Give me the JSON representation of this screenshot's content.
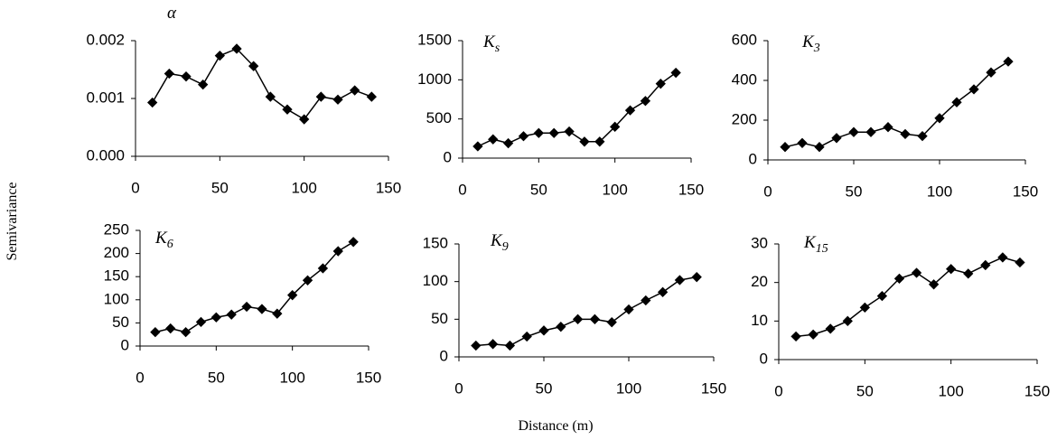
{
  "ylabel": "Semivariance",
  "xlabel": "Distance (m)",
  "chart_data": [
    {
      "type": "line",
      "title": "α",
      "x": [
        10,
        20,
        30,
        40,
        50,
        60,
        70,
        80,
        90,
        100,
        110,
        120,
        130,
        140
      ],
      "values": [
        0.00093,
        0.00143,
        0.00138,
        0.00124,
        0.00174,
        0.00186,
        0.00156,
        0.00103,
        0.00081,
        0.00064,
        0.00103,
        0.00098,
        0.00114,
        0.00103
      ],
      "color": "#000000",
      "xlim": [
        0,
        150
      ],
      "xticks": [
        0,
        50,
        100,
        150
      ],
      "ylim": [
        0,
        0.002
      ],
      "yticks": [
        {
          "value": 0,
          "label": "0.000"
        },
        {
          "value": 0.001,
          "label": "0.001"
        },
        {
          "value": 0.002,
          "label": "0.002"
        }
      ]
    },
    {
      "type": "line",
      "title": "K",
      "subscript": "s",
      "x": [
        10,
        20,
        30,
        40,
        50,
        60,
        70,
        80,
        90,
        100,
        110,
        120,
        130,
        140
      ],
      "values": [
        150,
        240,
        190,
        280,
        320,
        320,
        340,
        210,
        210,
        400,
        610,
        730,
        950,
        1090
      ],
      "color": "#000000",
      "xlim": [
        0,
        150
      ],
      "xticks": [
        0,
        50,
        100,
        150
      ],
      "ylim": [
        0,
        1500
      ],
      "yticks": [
        0,
        500,
        1000,
        1500
      ]
    },
    {
      "type": "line",
      "title": "K",
      "subscript": "3",
      "x": [
        10,
        20,
        30,
        40,
        50,
        60,
        70,
        80,
        90,
        100,
        110,
        120,
        130,
        140
      ],
      "values": [
        65,
        85,
        65,
        110,
        140,
        140,
        165,
        130,
        120,
        210,
        290,
        355,
        440,
        495
      ],
      "color": "#000000",
      "xlim": [
        0,
        150
      ],
      "xticks": [
        0,
        50,
        100,
        150
      ],
      "ylim": [
        0,
        600
      ],
      "yticks": [
        0,
        200,
        400,
        600
      ]
    },
    {
      "type": "line",
      "title": "K",
      "subscript": "6",
      "x": [
        10,
        20,
        30,
        40,
        50,
        60,
        70,
        80,
        90,
        100,
        110,
        120,
        130,
        140
      ],
      "values": [
        30,
        38,
        30,
        52,
        62,
        68,
        85,
        80,
        70,
        110,
        142,
        168,
        205,
        225
      ],
      "color": "#000000",
      "xlim": [
        0,
        150
      ],
      "xticks": [
        0,
        50,
        100,
        150
      ],
      "ylim": [
        0,
        250
      ],
      "yticks": [
        0,
        50,
        100,
        150,
        200,
        250
      ]
    },
    {
      "type": "line",
      "title": "K",
      "subscript": "9",
      "x": [
        10,
        20,
        30,
        40,
        50,
        60,
        70,
        80,
        90,
        100,
        110,
        120,
        130,
        140
      ],
      "values": [
        15,
        17,
        15,
        27,
        35,
        40,
        50,
        50,
        46,
        63,
        75,
        86,
        102,
        106
      ],
      "color": "#000000",
      "xlim": [
        0,
        150
      ],
      "xticks": [
        0,
        50,
        100,
        150
      ],
      "ylim": [
        0,
        150
      ],
      "yticks": [
        0,
        50,
        100,
        150
      ]
    },
    {
      "type": "line",
      "title": "K",
      "subscript": "15",
      "x": [
        10,
        20,
        30,
        40,
        50,
        60,
        70,
        80,
        90,
        100,
        110,
        120,
        130,
        140
      ],
      "values": [
        6,
        6.5,
        8,
        10,
        13.5,
        16.5,
        21,
        22.5,
        19.5,
        23.5,
        22.3,
        24.5,
        26.5,
        25.2
      ],
      "color": "#000000",
      "xlim": [
        0,
        150
      ],
      "xticks": [
        0,
        50,
        100,
        150
      ],
      "ylim": [
        0,
        30
      ],
      "yticks": [
        0,
        10,
        20,
        30
      ]
    }
  ]
}
